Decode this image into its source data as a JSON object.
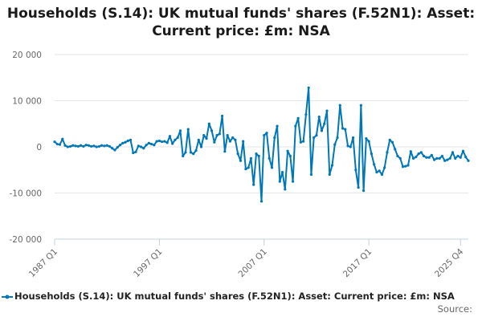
{
  "title_lines": [
    "Households (S.14): UK mutual funds' shares (F.52N1): Asset:",
    "Current price: £m: NSA"
  ],
  "legend_label": "Households (S.14): UK mutual funds' shares (F.52N1): Asset: Current price: £m: NSA",
  "source_label": "Source:",
  "colors": {
    "series": "#0077b6",
    "grid": "#e6e6e6",
    "axis": "#c0d0e0",
    "tick_text": "#666666"
  },
  "chart_data": {
    "type": "line",
    "title": "Households (S.14): UK mutual funds' shares (F.52N1): Asset: Current price: £m: NSA",
    "xlabel": "",
    "ylabel": "",
    "x_start": "1987 Q1",
    "x_end": "2025 Q4",
    "x_ticks": [
      "1987 Q1",
      "1997 Q1",
      "2007 Q1",
      "2017 Q1",
      "2025 Q4"
    ],
    "x_tick_index": [
      0,
      40,
      80,
      120,
      155
    ],
    "y_ticks": [
      20000,
      10000,
      0,
      -10000,
      -20000
    ],
    "y_tick_labels": [
      "20 000",
      "10 000",
      "0",
      "-10 000",
      "-20 000"
    ],
    "ylim": [
      -20000,
      20000
    ],
    "series": [
      {
        "name": "Households (S.14): UK mutual funds' shares (F.52N1): Asset: Current price: £m: NSA",
        "values": [
          1100,
          600,
          500,
          1700,
          300,
          0,
          100,
          300,
          200,
          100,
          300,
          100,
          400,
          300,
          100,
          200,
          0,
          100,
          300,
          200,
          300,
          100,
          -300,
          -700,
          -100,
          400,
          800,
          1000,
          1300,
          1500,
          -1300,
          -1100,
          200,
          0,
          -300,
          400,
          800,
          600,
          400,
          1200,
          1300,
          1100,
          1200,
          900,
          2300,
          700,
          1500,
          2000,
          3500,
          -2000,
          -1200,
          3800,
          -1200,
          -1500,
          -800,
          1500,
          0,
          2500,
          1800,
          5000,
          3500,
          1000,
          2500,
          2800,
          6700,
          -1000,
          2500,
          1200,
          2000,
          1500,
          -1500,
          -3000,
          1200,
          -4800,
          -4500,
          -2500,
          -8200,
          -1500,
          -2000,
          -11800,
          2500,
          3000,
          -2500,
          -4500,
          2000,
          4500,
          -7500,
          -5500,
          -9200,
          -900,
          -2000,
          -7500,
          4500,
          6200,
          1000,
          1200,
          7000,
          12800,
          -6000,
          2000,
          2500,
          6500,
          3500,
          5000,
          7800,
          -6000,
          -4000,
          500,
          2000,
          9000,
          4000,
          3800,
          200,
          0,
          2000,
          -5000,
          -8800,
          9000,
          -9500,
          1800,
          1200,
          -1500,
          -3800,
          -5500,
          -5200,
          -6000,
          -4500,
          -1200,
          1500,
          1000,
          -500,
          -2000,
          -2500,
          -4300,
          -4200,
          -4000,
          -1000,
          -2500,
          -2200,
          -1500,
          -1200,
          -2000,
          -2300,
          -2300,
          -1800,
          -2800,
          -2500,
          -2500,
          -2000,
          -3000,
          -2800,
          -2500,
          -1200,
          -2500,
          -2000,
          -2300,
          -900,
          -2200,
          -3000
        ]
      }
    ]
  }
}
